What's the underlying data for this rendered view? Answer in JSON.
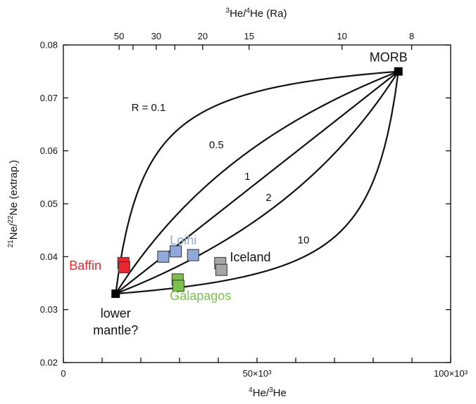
{
  "chart_data": {
    "type": "scatter",
    "xlabel_pre": "4",
    "xlabel_mid": "He/",
    "xlabel_sup": "3",
    "xlabel_post": "He",
    "ylabel_pre": "21",
    "ylabel_mid": "Ne/",
    "ylabel_sup": "22",
    "ylabel_post": "Ne (extrap.)",
    "top_axis_label_pre": "3",
    "top_axis_label_mid": "He/",
    "top_axis_label_sup": "4",
    "top_axis_label_post": "He (Ra)",
    "xlim": [
      0,
      100000
    ],
    "ylim": [
      0.02,
      0.08
    ],
    "x_ticks": [
      0,
      10000,
      20000,
      30000,
      40000,
      50000,
      60000,
      70000,
      80000,
      90000,
      100000
    ],
    "x_tick_labels": [
      {
        "value": 0,
        "text": "0"
      },
      {
        "value": 50000,
        "text": "50×10³"
      },
      {
        "value": 100000,
        "text": "100×10³"
      }
    ],
    "y_ticks": [
      {
        "value": 0.02,
        "text": "0.02"
      },
      {
        "value": 0.03,
        "text": "0.03"
      },
      {
        "value": 0.04,
        "text": "0.04"
      },
      {
        "value": 0.05,
        "text": "0.05"
      },
      {
        "value": 0.06,
        "text": "0.06"
      },
      {
        "value": 0.07,
        "text": "0.07"
      },
      {
        "value": 0.08,
        "text": "0.08"
      }
    ],
    "top_ticks": [
      {
        "ra": 50,
        "text": "50"
      },
      {
        "ra": 40,
        "text": ""
      },
      {
        "ra": 30,
        "text": "30"
      },
      {
        "ra": 25,
        "text": ""
      },
      {
        "ra": 20,
        "text": "20"
      },
      {
        "ra": 15,
        "text": "15"
      },
      {
        "ra": 10,
        "text": "10"
      },
      {
        "ra": 8,
        "text": "8"
      }
    ],
    "endmembers": [
      {
        "name": "MORB",
        "label": "MORB",
        "x": 86500,
        "y": 0.075
      },
      {
        "name": "lower-mantle",
        "label_line1": "lower",
        "label_line2": "mantle?",
        "x": 13500,
        "y": 0.033
      }
    ],
    "mixing_curves": [
      {
        "R": 0.1,
        "label": "R = 0.1",
        "label_x": 22000,
        "label_y": 0.0675
      },
      {
        "R": 0.5,
        "label": "0.5",
        "label_x": 39500,
        "label_y": 0.0605
      },
      {
        "R": 1,
        "label": "1",
        "label_x": 47500,
        "label_y": 0.0545
      },
      {
        "R": 2,
        "label": "2",
        "label_x": 53000,
        "label_y": 0.0505
      },
      {
        "R": 10,
        "label": "10",
        "label_x": 62000,
        "label_y": 0.0425
      }
    ],
    "series": [
      {
        "name": "Baffin",
        "color": "#e8262b",
        "points": [
          {
            "x": 15500,
            "y": 0.0388
          },
          {
            "x": 15700,
            "y": 0.038
          }
        ]
      },
      {
        "name": "Loihi",
        "color": "#8fa9d8",
        "points": [
          {
            "x": 25800,
            "y": 0.04
          },
          {
            "x": 29000,
            "y": 0.041
          },
          {
            "x": 33500,
            "y": 0.0403
          }
        ]
      },
      {
        "name": "Iceland",
        "color": "#a6a6a6",
        "points": [
          {
            "x": 40500,
            "y": 0.0388
          },
          {
            "x": 40800,
            "y": 0.0375
          }
        ]
      },
      {
        "name": "Galapagos",
        "color": "#7cc24a",
        "points": [
          {
            "x": 29500,
            "y": 0.0357
          },
          {
            "x": 29700,
            "y": 0.0345
          }
        ]
      }
    ],
    "series_labels": [
      {
        "name": "Baffin",
        "text": "Baffin",
        "color": "#e8262b",
        "x": 1500,
        "y": 0.0375
      },
      {
        "name": "Loihi",
        "text": "Loihi",
        "color": "#8fa9d8",
        "x": 27500,
        "y": 0.0423
      },
      {
        "name": "Iceland",
        "text": "Iceland",
        "color": "#111111",
        "x": 43000,
        "y": 0.0391
      },
      {
        "name": "Galapagos",
        "text": "Galapagos",
        "color": "#7cc24a",
        "x": 27500,
        "y": 0.0318
      }
    ],
    "grid": false
  }
}
